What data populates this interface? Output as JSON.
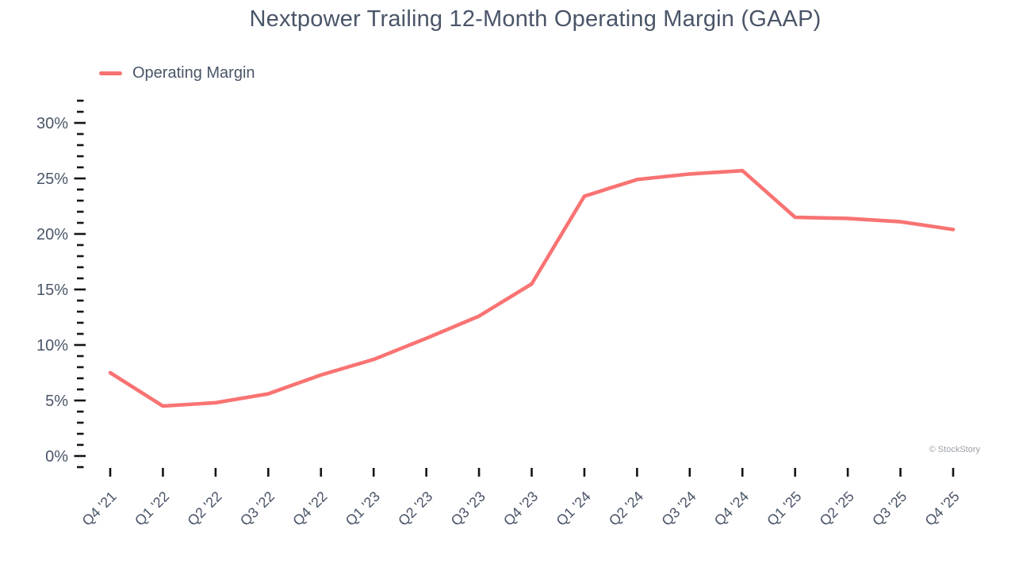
{
  "title": "Nextpower Trailing 12-Month Operating Margin (GAAP)",
  "legend": {
    "label": "Operating Margin"
  },
  "attribution": "© StockStory",
  "colors": {
    "line": "#F97373",
    "text": "#4A5568",
    "tick": "#141518",
    "attribution": "#9CA1A8",
    "background": "#FFFFFF"
  },
  "chart_data": {
    "type": "line",
    "title": "Nextpower Trailing 12-Month Operating Margin (GAAP)",
    "xlabel": "",
    "ylabel": "",
    "categories": [
      "Q4 '21",
      "Q1 '22",
      "Q2 '22",
      "Q3 '22",
      "Q4 '22",
      "Q1 '23",
      "Q2 '23",
      "Q3 '23",
      "Q4 '23",
      "Q1 '24",
      "Q2 '24",
      "Q3 '24",
      "Q4 '24",
      "Q1 '25",
      "Q2 '25",
      "Q3 '25",
      "Q4 '25"
    ],
    "series": [
      {
        "name": "Operating Margin",
        "unit": "%",
        "values": [
          7.5,
          4.5,
          4.8,
          5.6,
          7.3,
          8.7,
          10.6,
          12.6,
          15.5,
          23.4,
          24.9,
          25.4,
          25.7,
          21.5,
          21.4,
          21.1,
          20.4
        ]
      }
    ],
    "ylim": [
      -1,
      32
    ],
    "y_ticks_labeled": [
      0,
      5,
      10,
      15,
      20,
      25,
      30
    ],
    "y_minor_tick_step": 1,
    "y_tick_suffix": "%",
    "x_tick_label_rotation": -45,
    "grid": false,
    "legend_position": "top-left"
  }
}
